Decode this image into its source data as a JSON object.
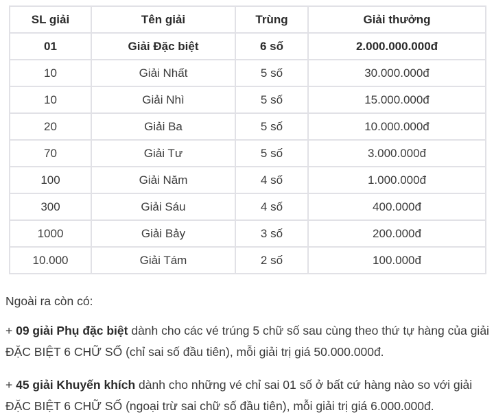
{
  "table": {
    "headers": [
      "SL giải",
      "Tên giải",
      "Trùng",
      "Giải thưởng"
    ],
    "rows": [
      {
        "qty": "01",
        "name": "Giải Đặc biệt",
        "match": "6 số",
        "prize": "2.000.000.000đ"
      },
      {
        "qty": "10",
        "name": "Giải Nhất",
        "match": "5 số",
        "prize": "30.000.000đ"
      },
      {
        "qty": "10",
        "name": "Giải Nhì",
        "match": "5 số",
        "prize": "15.000.000đ"
      },
      {
        "qty": "20",
        "name": "Giải Ba",
        "match": "5 số",
        "prize": "10.000.000đ"
      },
      {
        "qty": "70",
        "name": "Giải Tư",
        "match": "5 số",
        "prize": "3.000.000đ"
      },
      {
        "qty": "100",
        "name": "Giải Năm",
        "match": "4 số",
        "prize": "1.000.000đ"
      },
      {
        "qty": "300",
        "name": "Giải Sáu",
        "match": "4 số",
        "prize": "400.000đ"
      },
      {
        "qty": "1000",
        "name": "Giải Bảy",
        "match": "3 số",
        "prize": "200.000đ"
      },
      {
        "qty": "10.000",
        "name": "Giải Tám",
        "match": "2 số",
        "prize": "100.000đ"
      }
    ]
  },
  "notes": {
    "intro": "Ngoài ra còn có:",
    "items": [
      {
        "prefix": "+ ",
        "bold": "09 giải Phụ đặc biệt",
        "rest": " dành cho các vé trúng 5 chữ số sau cùng theo thứ tự hàng của giải ĐẶC BIỆT 6 CHỮ SỐ (chỉ sai số đầu tiên), mỗi giải trị giá 50.000.000đ."
      },
      {
        "prefix": "+ ",
        "bold": "45 giải Khuyến khích",
        "rest": " dành cho những vé chỉ sai 01 số ở bất cứ hàng nào so với giải ĐẶC BIỆT 6 CHỮ SỐ (ngoại trừ sai chữ số đầu tiên), mỗi giải trị giá 6.000.000đ."
      }
    ]
  },
  "colors": {
    "border": "#e1e1e6",
    "text": "#3a3a3a",
    "bold_text": "#2b2b2b",
    "background": "#ffffff"
  }
}
